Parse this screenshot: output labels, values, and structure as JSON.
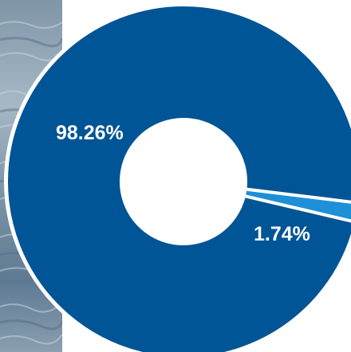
{
  "chart_data": {
    "type": "pie",
    "title": "",
    "categories": [
      "",
      ""
    ],
    "values": [
      98.26,
      1.74
    ],
    "labels": [
      "98.26%",
      "1.74%"
    ],
    "colors": [
      "#005596",
      "#1e90d8"
    ],
    "donut": true,
    "legend": "none"
  },
  "colors": {
    "background": "#ffffff",
    "photo_strip": "#8ea4b6"
  }
}
